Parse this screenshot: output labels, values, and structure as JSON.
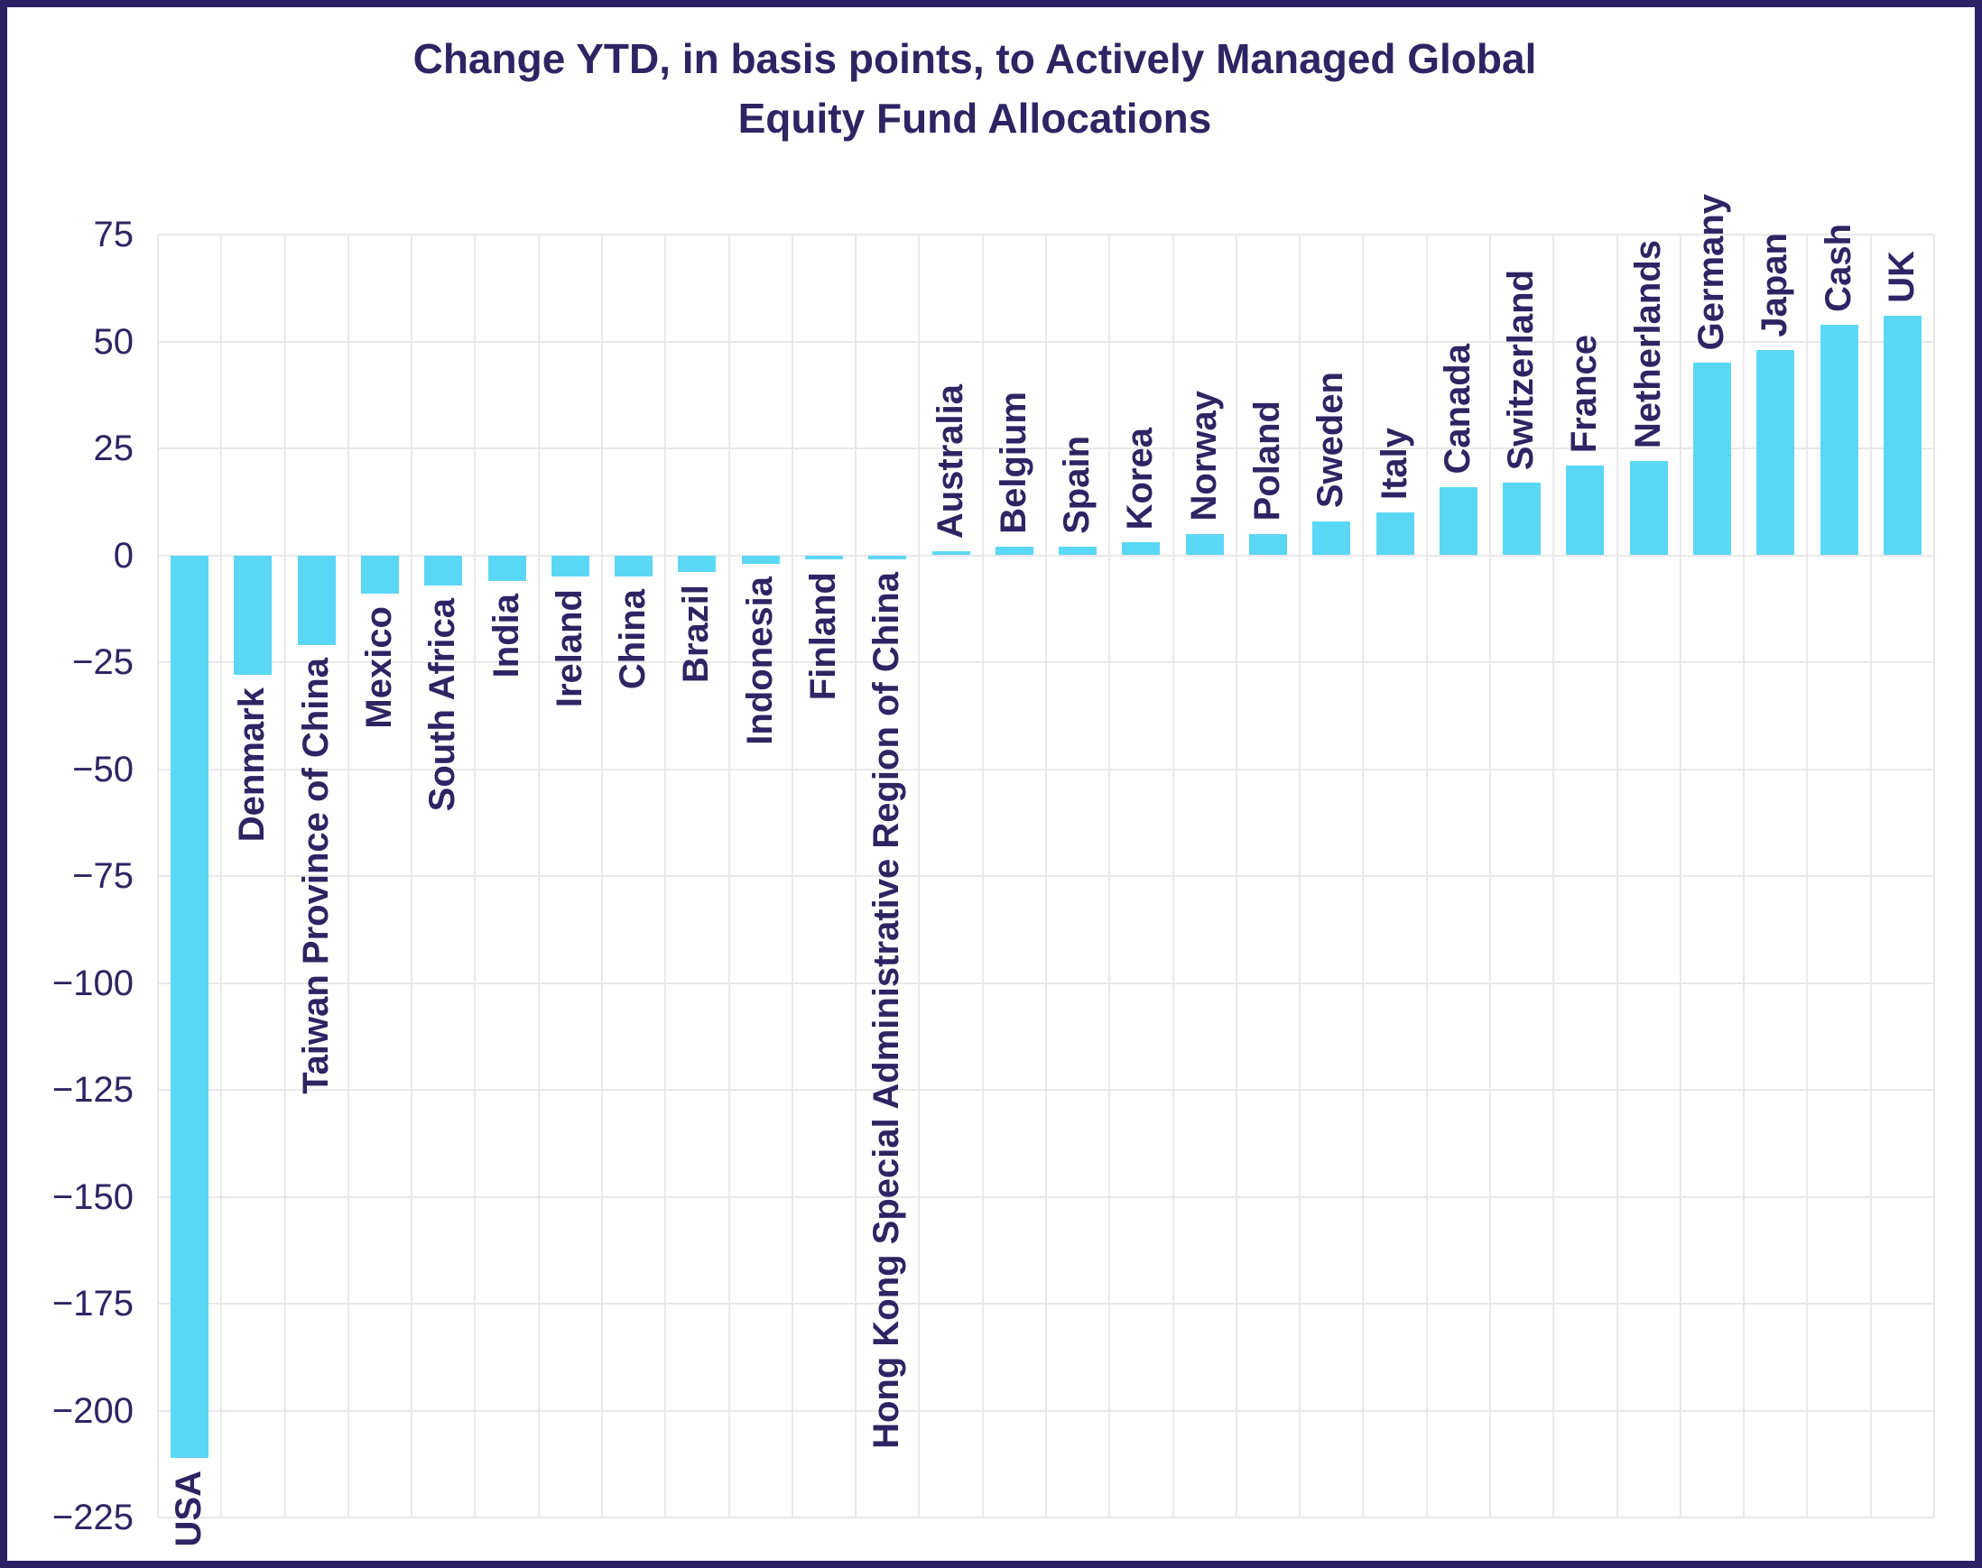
{
  "chart_data": {
    "type": "bar",
    "title": "Change YTD, in basis points, to Actively Managed Global Equity Fund Allocations",
    "title_lines": [
      "Change YTD, in basis points, to Actively Managed Global",
      "Equity Fund Allocations"
    ],
    "unit": "basis points",
    "categories": [
      "USA",
      "Denmark",
      "Taiwan Province of China",
      "Mexico",
      "South Africa",
      "India",
      "Ireland",
      "China",
      "Brazil",
      "Indonesia",
      "Finland",
      "Hong Kong Special Administrative Region of China",
      "Australia",
      "Belgium",
      "Spain",
      "Korea",
      "Norway",
      "Poland",
      "Sweden",
      "Italy",
      "Canada",
      "Switzerland",
      "France",
      "Netherlands",
      "Germany",
      "Japan",
      "Cash",
      "UK"
    ],
    "values": [
      -211,
      -28,
      -21,
      -9,
      -7,
      -6,
      -5,
      -5,
      -4,
      -2,
      -1,
      -1,
      1,
      2,
      2,
      3,
      5,
      5,
      8,
      10,
      16,
      17,
      21,
      22,
      45,
      48,
      54,
      56
    ],
    "xlabel": "",
    "ylabel": "",
    "ylim": [
      -225,
      75
    ],
    "yticks": [
      75,
      50,
      25,
      0,
      -25,
      -50,
      -75,
      -100,
      -125,
      -150,
      -175,
      -200,
      -225
    ],
    "grid": "both",
    "legend": "none",
    "bar_label_rotation_deg": 90,
    "colors": {
      "bar": "#5bd7f6",
      "text": "#2d2563",
      "grid": "#e8e8e8",
      "border": "#2b2164",
      "background": "#ffffff"
    }
  }
}
